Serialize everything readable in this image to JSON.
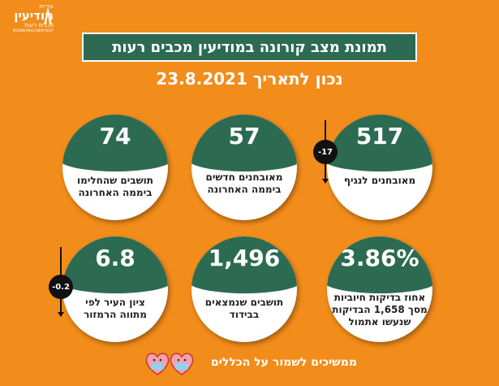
{
  "logo": {
    "line1": "עיריית",
    "line2": "מודיעין",
    "line3": "מכבים רעות",
    "line4": "MODIIN MACCABIM REUT"
  },
  "title": "תמונת מצב קורונה במודיעין מכבים רעות",
  "date_line": "נכון לתאריך  23.8.2021",
  "cards": [
    {
      "value": "517",
      "label": "מאובחנים לנגיף",
      "delta": "-17"
    },
    {
      "value": "57",
      "label": "מאובחנים חדשים ביממה האחרונה"
    },
    {
      "value": "74",
      "label": "תושבים שהחלימו ביממה האחרונה"
    },
    {
      "value": "3.86%",
      "label": "אחוז בדיקות חיוביות מסך 1,658 הבדיקות שנעשו אתמול"
    },
    {
      "value": "1,496",
      "label": "תושבים שנמצאים בבידוד"
    },
    {
      "value": "6.8",
      "label": "ציון העיר לפי מתווה הרמזור",
      "delta": "-0.2"
    }
  ],
  "footer": "ממשיכים לשמור על הכללים",
  "colors": {
    "background": "#f28c1a",
    "accent": "#2c6b52",
    "card": "#ffffff"
  }
}
